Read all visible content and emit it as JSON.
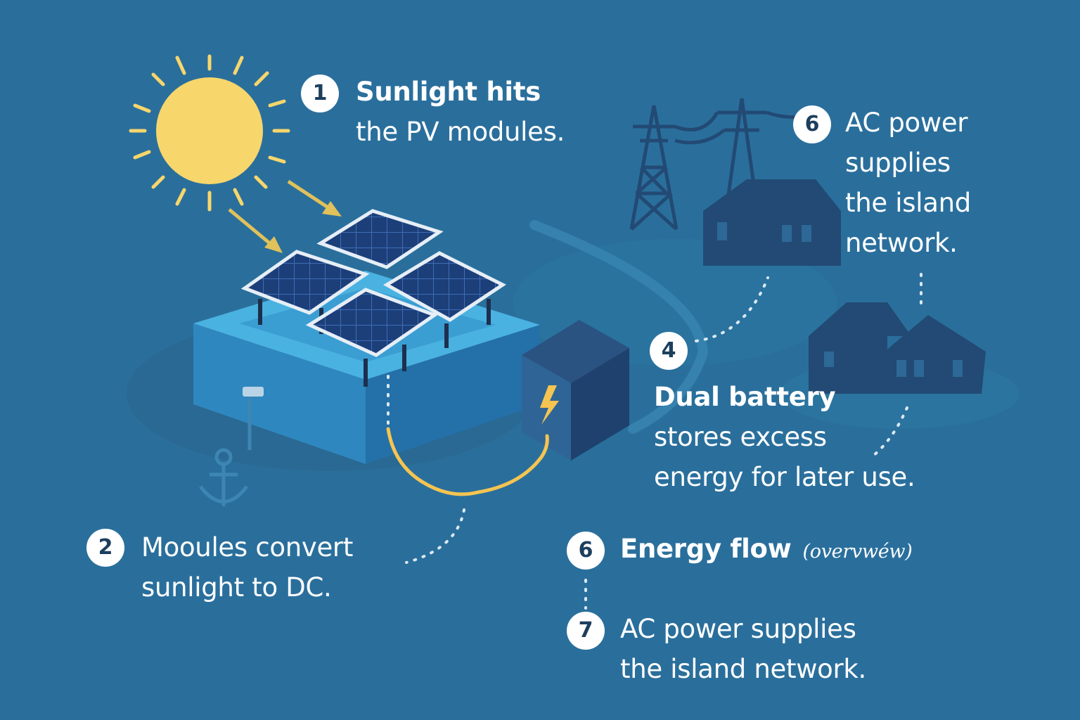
{
  "steps": {
    "s1": {
      "number": "1",
      "line1": "Sunlight hits",
      "line2": "the PV modules."
    },
    "s2": {
      "number": "2",
      "line1": "Mooules convert",
      "line2": "sunlight to DC."
    },
    "s4": {
      "number": "4",
      "line1": "Dual battery",
      "line2": "stores excess",
      "line3": "energy for later use."
    },
    "s6a": {
      "number": "6",
      "line1": "AC power",
      "line2": "supplies",
      "line3": "the island",
      "line4": "network."
    },
    "s6b": {
      "number": "6",
      "title": "Energy flow",
      "note": "(overvwéw)"
    },
    "s7": {
      "number": "7",
      "line1": "AC power supplies",
      "line2": "the island network."
    }
  },
  "icons": [
    "sun-icon",
    "solar-panel-icon",
    "battery-icon",
    "lightning-bolt-icon",
    "anchor-icon",
    "power-tower-icon",
    "house-icon"
  ],
  "colors": {
    "background": "#2a6f9c",
    "sun": "#f7d66c",
    "cable": "#f5c451",
    "platform": "#3aa3d6",
    "panel": "#1c3f7a",
    "silhouette": "#23527c"
  }
}
